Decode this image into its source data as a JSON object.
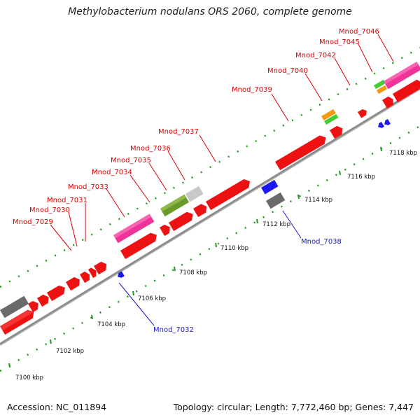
{
  "title": "Methylobacterium nodulans ORS 2060, complete genome",
  "footer": {
    "accession": "Accession: NC_011894",
    "summary": "Topology: circular; Length: 7,772,460 bp; Genes: 7,447"
  },
  "tick_labels": [
    "7100 kbp",
    "7102 kbp",
    "7104 kbp",
    "7106 kbp",
    "7108 kbp",
    "7110 kbp",
    "7112 kbp",
    "7114 kbp",
    "7116 kbp",
    "7118 kbp"
  ],
  "gene_labels_top": [
    "Mnod_7029",
    "Mnod_7030",
    "Mnod_7031",
    "Mnod_7033",
    "Mnod_7034",
    "Mnod_7035",
    "Mnod_7036",
    "Mnod_7037",
    "Mnod_7039",
    "Mnod_7040",
    "Mnod_7042",
    "Mnod_7045",
    "Mnod_7046"
  ],
  "gene_labels_bottom": [
    "Mnod_7032",
    "Mnod_7038"
  ],
  "colors": {
    "cds": "#ee1111",
    "pink": "#ee3399",
    "olive": "#6b9a2a",
    "light_gray": "#c8c8c8",
    "dark_gray": "#6a6a6a",
    "orange": "#f59a10",
    "green": "#44cc33",
    "blue": "#1a1aee",
    "backbone": "#8c8c8c",
    "ticks": "#229922"
  }
}
